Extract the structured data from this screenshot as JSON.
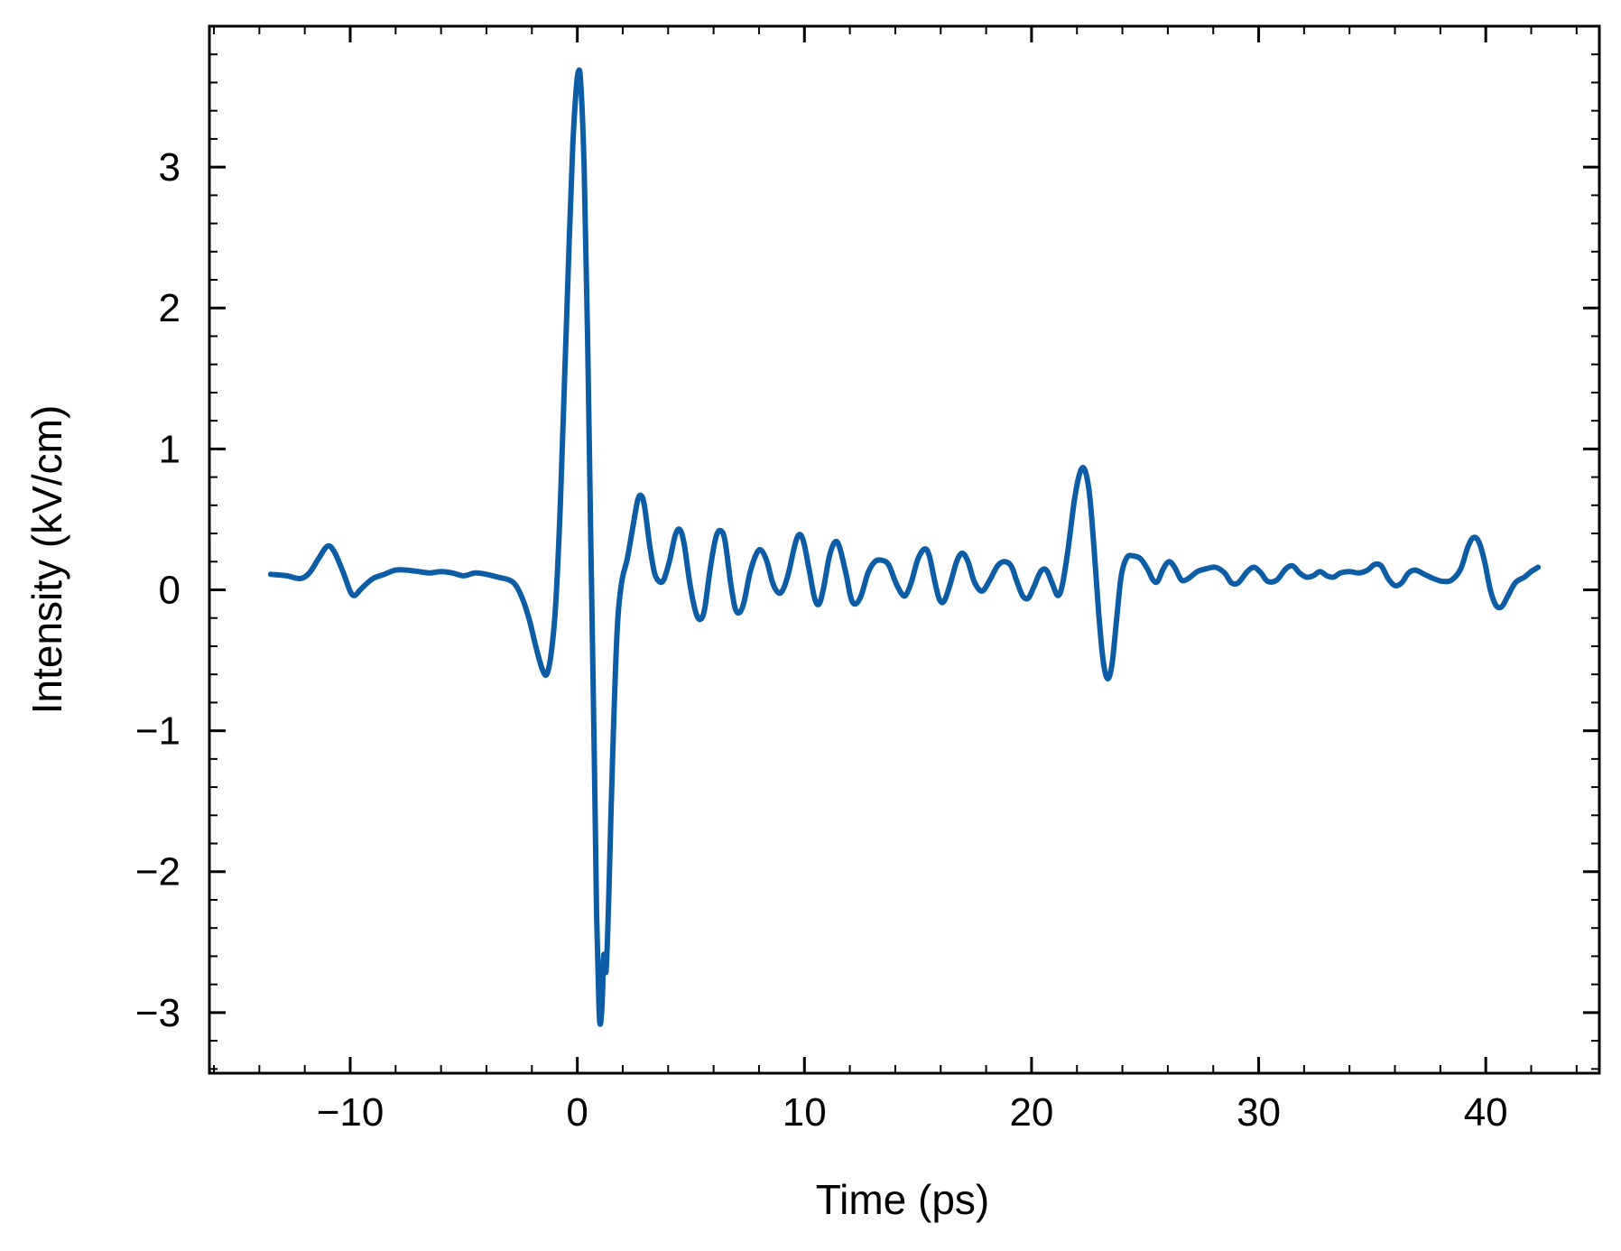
{
  "chart_data": {
    "type": "line",
    "title": "",
    "xlabel": "Time (ps)",
    "ylabel": "Intensity (kV/cm)",
    "xlim": [
      -16.2,
      45
    ],
    "ylim": [
      -3.43,
      4.0
    ],
    "x_ticks": [
      -10,
      0,
      10,
      20,
      30,
      40
    ],
    "x_tick_labels": [
      "−10",
      "0",
      "10",
      "20",
      "30",
      "40"
    ],
    "y_ticks": [
      -3,
      -2,
      -1,
      0,
      1,
      2,
      3
    ],
    "y_tick_labels": [
      "−3",
      "−2",
      "−1",
      "0",
      "1",
      "2",
      "3"
    ],
    "x_minor_step": 2,
    "y_minor_step": 0.2,
    "grid": false,
    "legend": "none",
    "line_color": "#0C5DA5",
    "series": [
      {
        "points": [
          [
            -13.5,
            0.11
          ],
          [
            -12.8,
            0.1
          ],
          [
            -12.2,
            0.08
          ],
          [
            -11.8,
            0.12
          ],
          [
            -11.4,
            0.22
          ],
          [
            -11.0,
            0.31
          ],
          [
            -10.7,
            0.27
          ],
          [
            -10.3,
            0.12
          ],
          [
            -10.0,
            -0.01
          ],
          [
            -9.8,
            -0.04
          ],
          [
            -9.5,
            0.01
          ],
          [
            -9.0,
            0.08
          ],
          [
            -8.5,
            0.11
          ],
          [
            -8.0,
            0.14
          ],
          [
            -7.5,
            0.14
          ],
          [
            -7.0,
            0.13
          ],
          [
            -6.5,
            0.12
          ],
          [
            -6.0,
            0.13
          ],
          [
            -5.5,
            0.12
          ],
          [
            -5.0,
            0.1
          ],
          [
            -4.5,
            0.12
          ],
          [
            -4.0,
            0.11
          ],
          [
            -3.5,
            0.09
          ],
          [
            -3.0,
            0.07
          ],
          [
            -2.7,
            0.03
          ],
          [
            -2.4,
            -0.07
          ],
          [
            -2.1,
            -0.22
          ],
          [
            -1.8,
            -0.42
          ],
          [
            -1.55,
            -0.56
          ],
          [
            -1.35,
            -0.6
          ],
          [
            -1.15,
            -0.45
          ],
          [
            -0.95,
            -0.1
          ],
          [
            -0.75,
            0.6
          ],
          [
            -0.55,
            1.55
          ],
          [
            -0.35,
            2.5
          ],
          [
            -0.2,
            3.15
          ],
          [
            -0.05,
            3.55
          ],
          [
            0.05,
            3.68
          ],
          [
            0.15,
            3.6
          ],
          [
            0.3,
            3.0
          ],
          [
            0.45,
            1.8
          ],
          [
            0.6,
            0.3
          ],
          [
            0.75,
            -1.2
          ],
          [
            0.85,
            -2.3
          ],
          [
            0.95,
            -2.95
          ],
          [
            1.02,
            -3.08
          ],
          [
            1.1,
            -2.9
          ],
          [
            1.15,
            -2.62
          ],
          [
            1.2,
            -2.6
          ],
          [
            1.27,
            -2.7
          ],
          [
            1.38,
            -2.2
          ],
          [
            1.55,
            -1.2
          ],
          [
            1.75,
            -0.3
          ],
          [
            1.95,
            0.05
          ],
          [
            2.2,
            0.22
          ],
          [
            2.45,
            0.45
          ],
          [
            2.65,
            0.63
          ],
          [
            2.8,
            0.67
          ],
          [
            2.95,
            0.6
          ],
          [
            3.2,
            0.3
          ],
          [
            3.4,
            0.12
          ],
          [
            3.6,
            0.06
          ],
          [
            3.8,
            0.07
          ],
          [
            4.05,
            0.2
          ],
          [
            4.3,
            0.38
          ],
          [
            4.5,
            0.43
          ],
          [
            4.7,
            0.33
          ],
          [
            4.95,
            0.05
          ],
          [
            5.2,
            -0.15
          ],
          [
            5.4,
            -0.21
          ],
          [
            5.6,
            -0.14
          ],
          [
            5.85,
            0.15
          ],
          [
            6.1,
            0.37
          ],
          [
            6.3,
            0.42
          ],
          [
            6.5,
            0.35
          ],
          [
            6.75,
            0.05
          ],
          [
            6.95,
            -0.13
          ],
          [
            7.15,
            -0.16
          ],
          [
            7.35,
            -0.08
          ],
          [
            7.6,
            0.12
          ],
          [
            7.9,
            0.26
          ],
          [
            8.1,
            0.28
          ],
          [
            8.35,
            0.2
          ],
          [
            8.6,
            0.05
          ],
          [
            8.85,
            -0.02
          ],
          [
            9.05,
            0.0
          ],
          [
            9.3,
            0.12
          ],
          [
            9.55,
            0.3
          ],
          [
            9.75,
            0.39
          ],
          [
            9.95,
            0.35
          ],
          [
            10.2,
            0.15
          ],
          [
            10.45,
            -0.06
          ],
          [
            10.65,
            -0.1
          ],
          [
            10.85,
            0.02
          ],
          [
            11.1,
            0.24
          ],
          [
            11.35,
            0.34
          ],
          [
            11.55,
            0.3
          ],
          [
            11.85,
            0.1
          ],
          [
            12.05,
            -0.06
          ],
          [
            12.25,
            -0.1
          ],
          [
            12.5,
            -0.04
          ],
          [
            12.8,
            0.12
          ],
          [
            13.1,
            0.2
          ],
          [
            13.4,
            0.21
          ],
          [
            13.7,
            0.18
          ],
          [
            14.0,
            0.06
          ],
          [
            14.25,
            -0.02
          ],
          [
            14.45,
            -0.04
          ],
          [
            14.7,
            0.05
          ],
          [
            15.0,
            0.22
          ],
          [
            15.3,
            0.29
          ],
          [
            15.5,
            0.24
          ],
          [
            15.75,
            0.05
          ],
          [
            15.95,
            -0.07
          ],
          [
            16.15,
            -0.08
          ],
          [
            16.4,
            0.03
          ],
          [
            16.7,
            0.2
          ],
          [
            16.95,
            0.26
          ],
          [
            17.2,
            0.2
          ],
          [
            17.45,
            0.07
          ],
          [
            17.7,
            0.0
          ],
          [
            17.9,
            0.0
          ],
          [
            18.2,
            0.08
          ],
          [
            18.5,
            0.17
          ],
          [
            18.8,
            0.2
          ],
          [
            19.1,
            0.17
          ],
          [
            19.35,
            0.06
          ],
          [
            19.6,
            -0.04
          ],
          [
            19.85,
            -0.06
          ],
          [
            20.1,
            0.02
          ],
          [
            20.4,
            0.13
          ],
          [
            20.65,
            0.14
          ],
          [
            20.9,
            0.05
          ],
          [
            21.15,
            -0.04
          ],
          [
            21.35,
            0.03
          ],
          [
            21.6,
            0.28
          ],
          [
            21.9,
            0.65
          ],
          [
            22.15,
            0.84
          ],
          [
            22.35,
            0.85
          ],
          [
            22.55,
            0.68
          ],
          [
            22.75,
            0.3
          ],
          [
            22.95,
            -0.15
          ],
          [
            23.15,
            -0.5
          ],
          [
            23.35,
            -0.63
          ],
          [
            23.55,
            -0.52
          ],
          [
            23.75,
            -0.2
          ],
          [
            23.95,
            0.1
          ],
          [
            24.2,
            0.23
          ],
          [
            24.5,
            0.24
          ],
          [
            24.8,
            0.22
          ],
          [
            25.1,
            0.15
          ],
          [
            25.35,
            0.07
          ],
          [
            25.55,
            0.06
          ],
          [
            25.8,
            0.15
          ],
          [
            26.05,
            0.2
          ],
          [
            26.3,
            0.16
          ],
          [
            26.6,
            0.07
          ],
          [
            26.9,
            0.08
          ],
          [
            27.3,
            0.13
          ],
          [
            27.7,
            0.15
          ],
          [
            28.1,
            0.16
          ],
          [
            28.5,
            0.12
          ],
          [
            28.8,
            0.05
          ],
          [
            29.1,
            0.05
          ],
          [
            29.5,
            0.13
          ],
          [
            29.8,
            0.16
          ],
          [
            30.1,
            0.12
          ],
          [
            30.4,
            0.06
          ],
          [
            30.8,
            0.07
          ],
          [
            31.2,
            0.15
          ],
          [
            31.5,
            0.17
          ],
          [
            31.8,
            0.12
          ],
          [
            32.1,
            0.09
          ],
          [
            32.4,
            0.1
          ],
          [
            32.7,
            0.13
          ],
          [
            33.0,
            0.1
          ],
          [
            33.3,
            0.09
          ],
          [
            33.6,
            0.12
          ],
          [
            34.0,
            0.13
          ],
          [
            34.4,
            0.12
          ],
          [
            34.8,
            0.14
          ],
          [
            35.1,
            0.18
          ],
          [
            35.4,
            0.17
          ],
          [
            35.7,
            0.08
          ],
          [
            36.0,
            0.03
          ],
          [
            36.3,
            0.05
          ],
          [
            36.6,
            0.12
          ],
          [
            36.9,
            0.14
          ],
          [
            37.3,
            0.11
          ],
          [
            37.7,
            0.08
          ],
          [
            38.1,
            0.06
          ],
          [
            38.5,
            0.07
          ],
          [
            38.9,
            0.15
          ],
          [
            39.2,
            0.3
          ],
          [
            39.45,
            0.37
          ],
          [
            39.7,
            0.34
          ],
          [
            39.95,
            0.2
          ],
          [
            40.2,
            0.0
          ],
          [
            40.45,
            -0.11
          ],
          [
            40.7,
            -0.12
          ],
          [
            40.95,
            -0.05
          ],
          [
            41.3,
            0.05
          ],
          [
            41.7,
            0.09
          ],
          [
            42.0,
            0.13
          ],
          [
            42.3,
            0.16
          ]
        ]
      }
    ]
  }
}
